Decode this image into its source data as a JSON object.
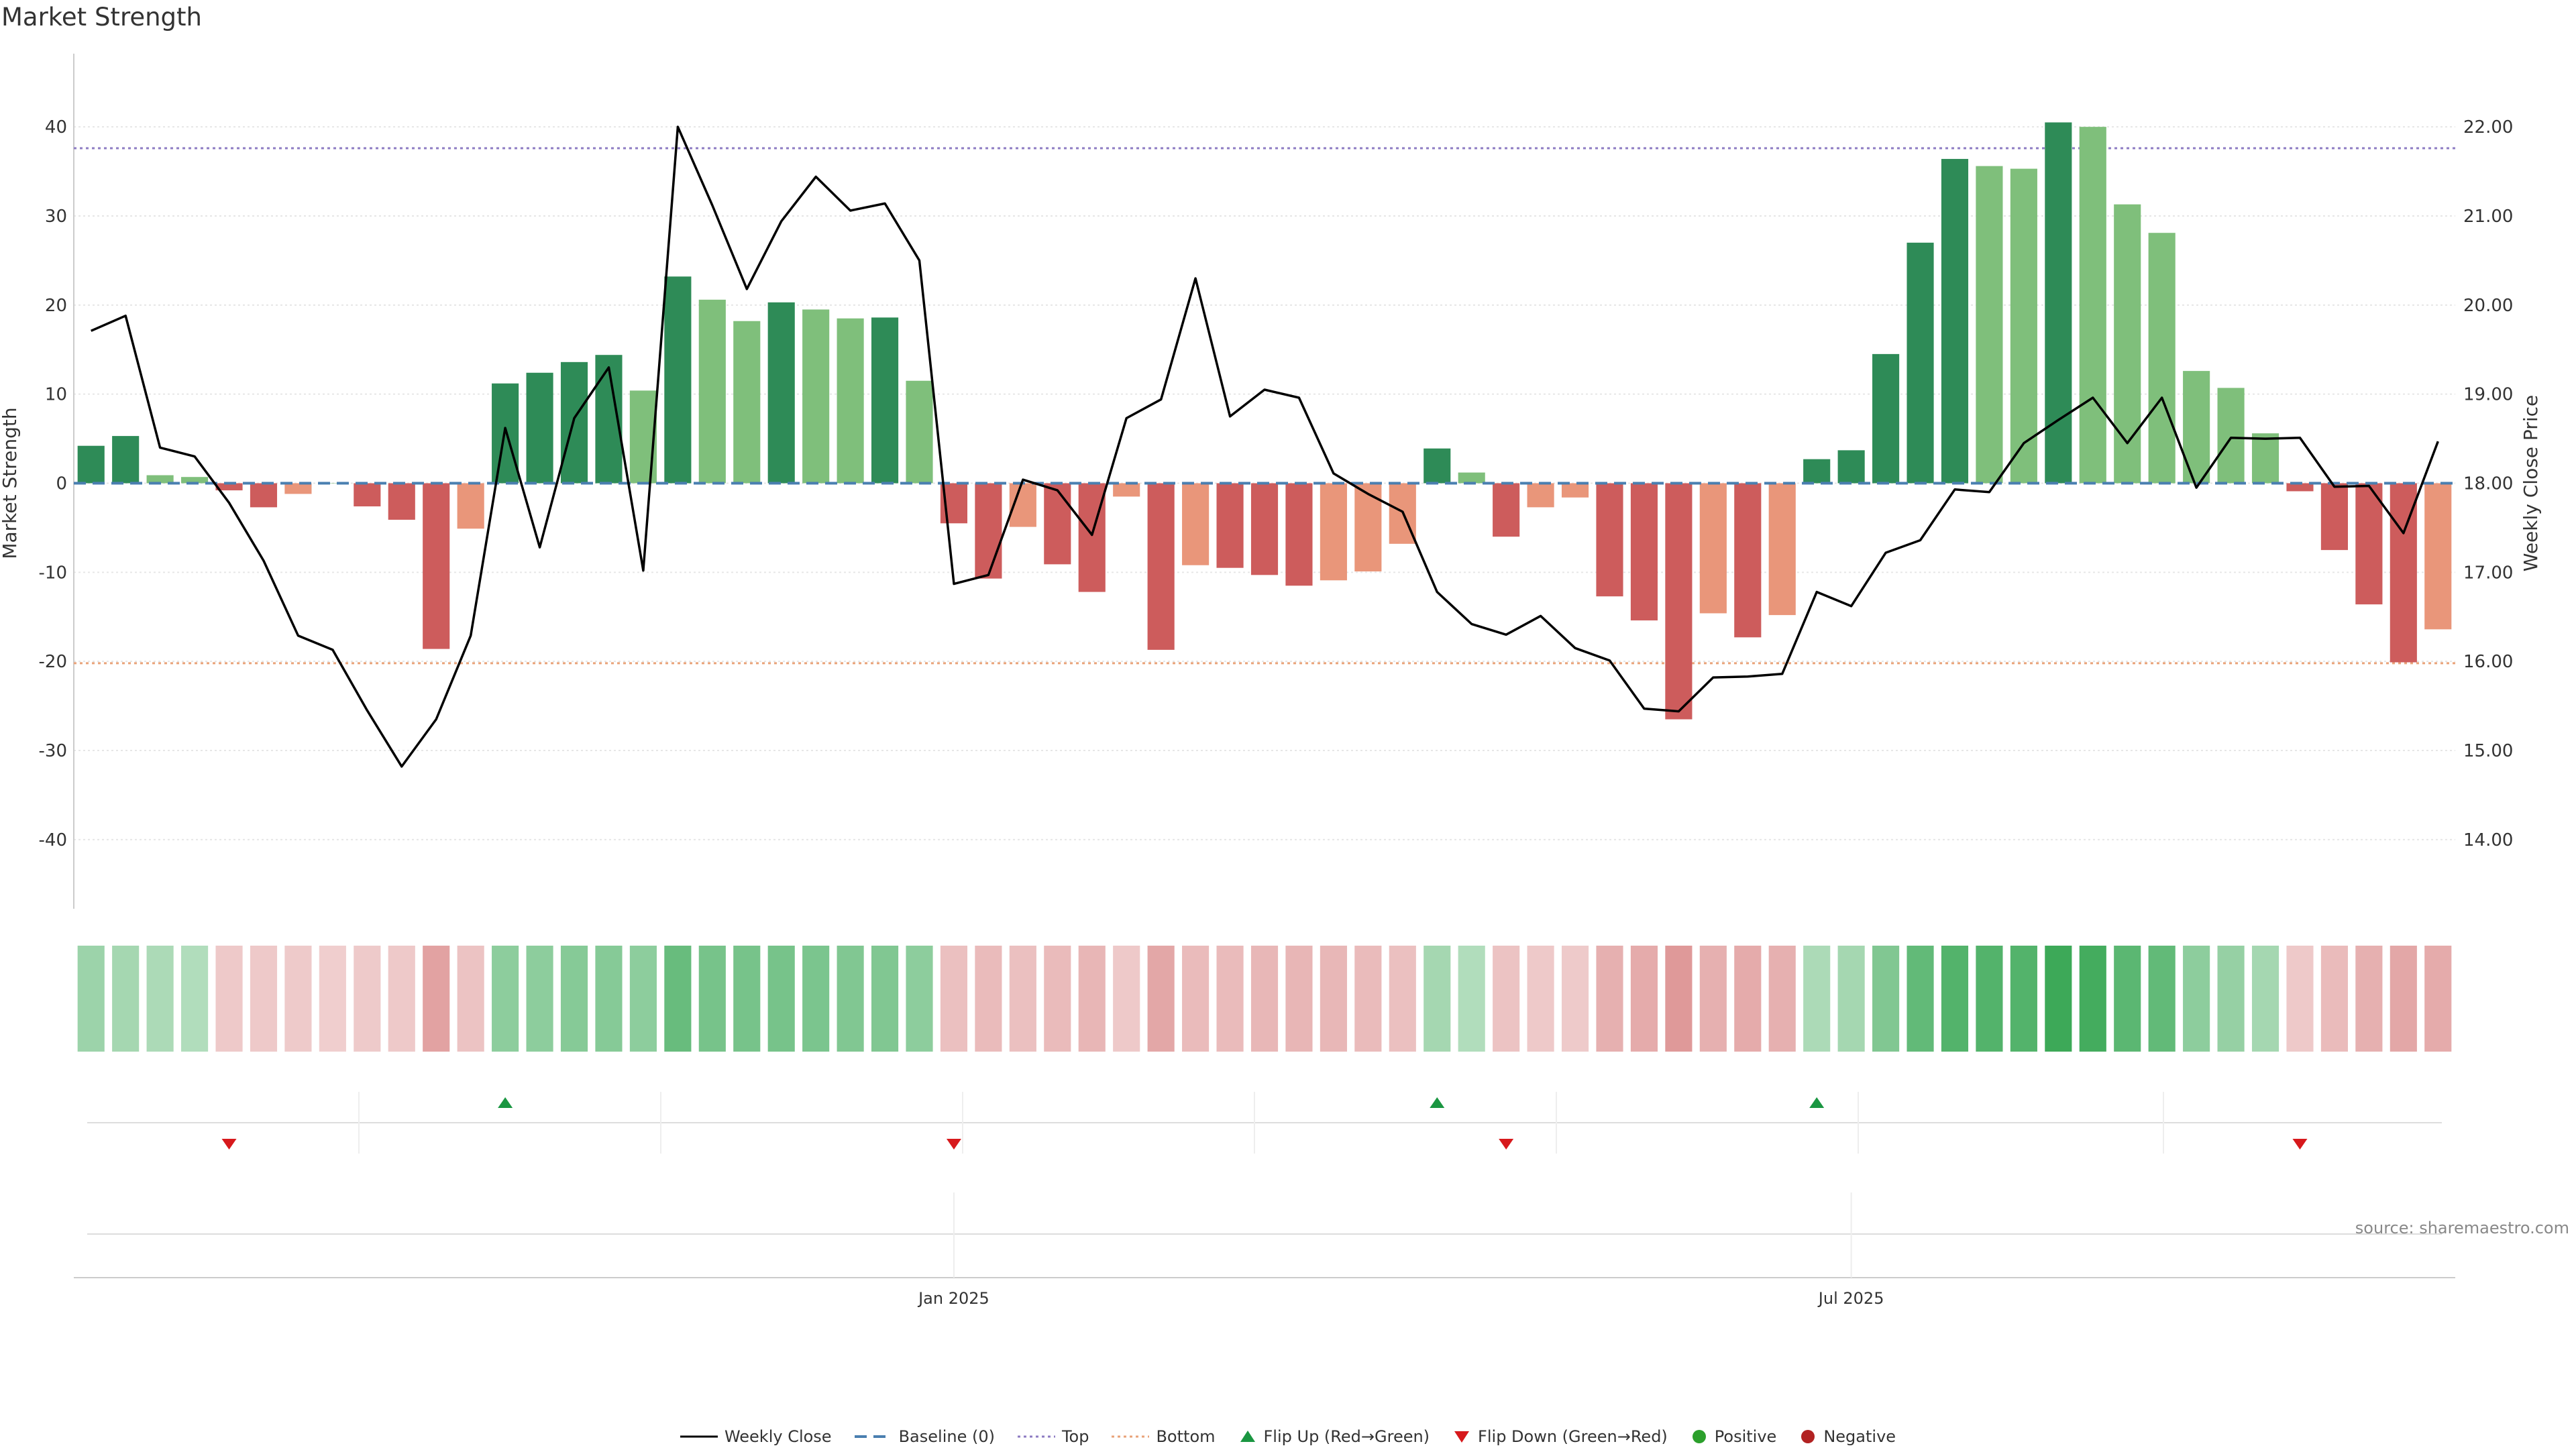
{
  "title": "Market Strength",
  "source": "source: sharemaestro.com",
  "legend": {
    "weekly_close": "Weekly Close",
    "baseline": "Baseline (0)",
    "top": "Top",
    "bottom": "Bottom",
    "flip_up": "Flip Up (Red→Green)",
    "flip_down": "Flip Down (Green→Red)",
    "positive": "Positive",
    "negative": "Negative"
  },
  "colors": {
    "strong_pos": "#2e8b57",
    "light_pos": "#7fbf7b",
    "strong_neg": "#cd5c5c",
    "light_neg": "#e9967a",
    "price_line": "#000000",
    "baseline": "#4a7fb0",
    "top": "#8e7cc3",
    "bottom": "#e9a37a",
    "flip_up": "#1a9641",
    "flip_down": "#d7191c",
    "positive": "#2ca02c",
    "negative": "#b22222"
  },
  "chart_data": {
    "type": "bar",
    "title": "Market Strength",
    "ylabel": "Market Strength",
    "y2label": "Weekly Close Price",
    "ylim": [
      -44,
      44
    ],
    "yticks": [
      -40,
      -30,
      -20,
      -10,
      0,
      10,
      20,
      30,
      40
    ],
    "y2lim": [
      13.6,
      22.4
    ],
    "y2ticks": [
      "14.00",
      "15.00",
      "16.00",
      "17.00",
      "18.00",
      "19.00",
      "20.00",
      "21.00",
      "22.00"
    ],
    "xticks": [
      {
        "label": "Jan 2025",
        "index": 25.5
      },
      {
        "label": "Jul 2025",
        "index": 51.5
      }
    ],
    "thresholds": {
      "top": 37.6,
      "bottom": -20.2,
      "baseline": 0
    },
    "strength": [
      4.2,
      5.3,
      0.9,
      0.7,
      -0.8,
      -2.7,
      -1.2,
      0,
      -2.6,
      -4.1,
      -18.6,
      -5.1,
      11.2,
      12.4,
      13.6,
      14.4,
      10.4,
      23.2,
      20.6,
      18.2,
      20.3,
      19.5,
      18.5,
      18.6,
      11.5,
      -4.5,
      -10.7,
      -4.9,
      -9.1,
      -12.2,
      -1.5,
      -18.7,
      -9.2,
      -9.5,
      -10.3,
      -11.5,
      -10.9,
      -9.9,
      -6.8,
      3.9,
      1.2,
      -6.0,
      -2.7,
      -1.6,
      -12.7,
      -15.4,
      -26.5,
      -14.6,
      -17.3,
      -14.8,
      2.7,
      3.7,
      14.5,
      27.0,
      36.4,
      35.6,
      35.3,
      40.5,
      40.0,
      31.3,
      28.1,
      12.6,
      10.7,
      5.6,
      -0.9,
      -7.5,
      -13.6,
      -20.1,
      -16.4
    ],
    "strength_shade": [
      "dark",
      "dark",
      "light",
      "light",
      "dark",
      "dark",
      "light",
      "light",
      "dark",
      "dark",
      "dark",
      "light",
      "dark",
      "dark",
      "dark",
      "dark",
      "light",
      "dark",
      "light",
      "light",
      "dark",
      "light",
      "light",
      "dark",
      "light",
      "dark",
      "dark",
      "light",
      "dark",
      "dark",
      "light",
      "dark",
      "light",
      "dark",
      "dark",
      "dark",
      "light",
      "light",
      "light",
      "dark",
      "light",
      "dark",
      "light",
      "light",
      "dark",
      "dark",
      "dark",
      "light",
      "dark",
      "light",
      "dark",
      "dark",
      "dark",
      "dark",
      "dark",
      "light",
      "light",
      "dark",
      "light",
      "light",
      "light",
      "light",
      "light",
      "light",
      "dark",
      "dark",
      "dark",
      "dark",
      "light"
    ],
    "weekly_close": [
      19.71,
      19.88,
      18.4,
      18.3,
      17.78,
      17.13,
      16.29,
      16.13,
      15.45,
      14.82,
      15.35,
      16.29,
      18.62,
      17.28,
      18.73,
      19.3,
      17.02,
      22.0,
      21.12,
      20.18,
      20.94,
      21.44,
      21.06,
      21.14,
      20.5,
      16.87,
      16.97,
      18.04,
      17.92,
      17.42,
      18.73,
      18.94,
      20.3,
      18.75,
      19.05,
      18.96,
      18.11,
      17.88,
      17.68,
      16.78,
      16.42,
      16.3,
      16.51,
      16.15,
      16.01,
      15.47,
      15.44,
      15.82,
      15.83,
      15.86,
      16.78,
      16.62,
      17.22,
      17.36,
      17.93,
      17.9,
      18.45,
      18.71,
      18.96,
      18.45,
      18.96,
      17.95,
      18.51,
      18.5,
      18.51,
      17.96,
      17.97,
      17.44,
      18.47
    ],
    "heat_strip": [
      0.35,
      0.3,
      0.25,
      0.2,
      -0.2,
      -0.2,
      -0.18,
      -0.15,
      -0.18,
      -0.2,
      -0.6,
      -0.25,
      0.45,
      0.45,
      0.5,
      0.5,
      0.45,
      0.7,
      0.6,
      0.6,
      0.6,
      0.58,
      0.55,
      0.55,
      0.45,
      -0.3,
      -0.35,
      -0.3,
      -0.35,
      -0.4,
      -0.2,
      -0.55,
      -0.35,
      -0.35,
      -0.38,
      -0.4,
      -0.38,
      -0.35,
      -0.3,
      0.3,
      0.2,
      -0.25,
      -0.2,
      -0.18,
      -0.45,
      -0.5,
      -0.7,
      -0.45,
      -0.5,
      -0.45,
      0.25,
      0.3,
      0.55,
      0.75,
      0.85,
      0.85,
      0.85,
      1.0,
      0.95,
      0.8,
      0.75,
      0.45,
      0.4,
      0.3,
      -0.2,
      -0.35,
      -0.45,
      -0.55,
      -0.5
    ],
    "flips_up": [
      12,
      39,
      50
    ],
    "flips_down": [
      4,
      25,
      41,
      64
    ]
  }
}
